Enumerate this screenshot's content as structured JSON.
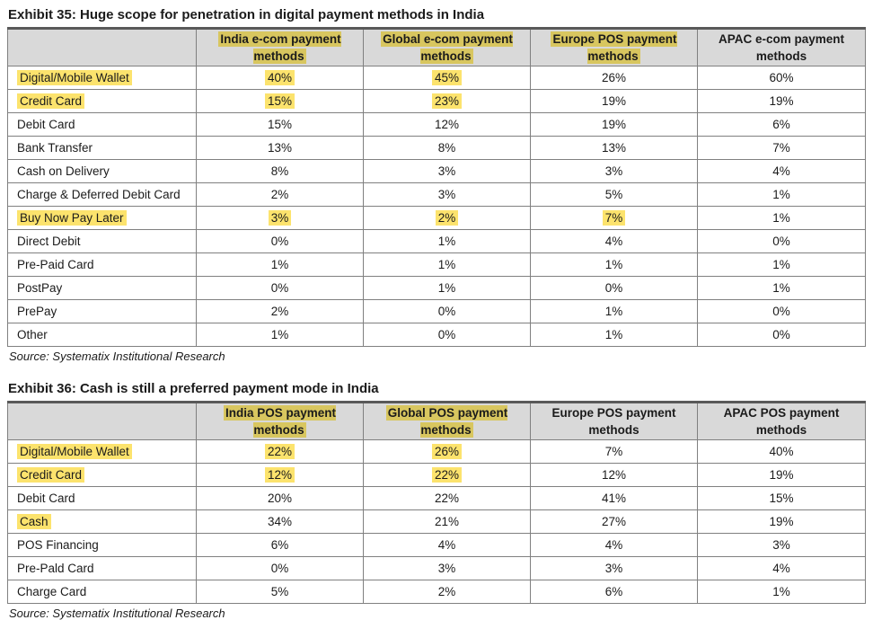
{
  "colors": {
    "header_bg": "#d9d9d9",
    "highlight_body": "#fce36d",
    "highlight_header": "#d8c65f",
    "border": "#808080",
    "border_top": "#595959",
    "text": "#1b1b1b"
  },
  "exhibits": [
    {
      "title": "Exhibit 35: Huge scope for penetration in digital payment methods in India",
      "source": "Source: Systematix Institutional Research",
      "columns": [
        {
          "label": "",
          "hl": false
        },
        {
          "label": "India e-com payment methods",
          "hl": true
        },
        {
          "label": "Global e-com payment methods",
          "hl": true
        },
        {
          "label": "Europe POS payment methods",
          "hl": true
        },
        {
          "label": "APAC e-com payment methods",
          "hl": false
        }
      ],
      "rows": [
        {
          "label": "Digital/Mobile Wallet",
          "label_hl": true,
          "values": [
            "40%",
            "45%",
            "26%",
            "60%"
          ],
          "hl": [
            true,
            true,
            false,
            false
          ]
        },
        {
          "label": "Credit Card",
          "label_hl": true,
          "values": [
            "15%",
            "23%",
            "19%",
            "19%"
          ],
          "hl": [
            true,
            true,
            false,
            false
          ]
        },
        {
          "label": "Debit Card",
          "label_hl": false,
          "values": [
            "15%",
            "12%",
            "19%",
            "6%"
          ],
          "hl": [
            false,
            false,
            false,
            false
          ]
        },
        {
          "label": "Bank Transfer",
          "label_hl": false,
          "values": [
            "13%",
            "8%",
            "13%",
            "7%"
          ],
          "hl": [
            false,
            false,
            false,
            false
          ]
        },
        {
          "label": "Cash on Delivery",
          "label_hl": false,
          "values": [
            "8%",
            "3%",
            "3%",
            "4%"
          ],
          "hl": [
            false,
            false,
            false,
            false
          ]
        },
        {
          "label": "Charge & Deferred Debit Card",
          "label_hl": false,
          "values": [
            "2%",
            "3%",
            "5%",
            "1%"
          ],
          "hl": [
            false,
            false,
            false,
            false
          ]
        },
        {
          "label": "Buy Now Pay Later",
          "label_hl": true,
          "values": [
            "3%",
            "2%",
            "7%",
            "1%"
          ],
          "hl": [
            true,
            true,
            true,
            false
          ]
        },
        {
          "label": "Direct Debit",
          "label_hl": false,
          "values": [
            "0%",
            "1%",
            "4%",
            "0%"
          ],
          "hl": [
            false,
            false,
            false,
            false
          ]
        },
        {
          "label": "Pre-Paid Card",
          "label_hl": false,
          "values": [
            "1%",
            "1%",
            "1%",
            "1%"
          ],
          "hl": [
            false,
            false,
            false,
            false
          ]
        },
        {
          "label": "PostPay",
          "label_hl": false,
          "values": [
            "0%",
            "1%",
            "0%",
            "1%"
          ],
          "hl": [
            false,
            false,
            false,
            false
          ]
        },
        {
          "label": "PrePay",
          "label_hl": false,
          "values": [
            "2%",
            "0%",
            "1%",
            "0%"
          ],
          "hl": [
            false,
            false,
            false,
            false
          ]
        },
        {
          "label": "Other",
          "label_hl": false,
          "values": [
            "1%",
            "0%",
            "1%",
            "0%"
          ],
          "hl": [
            false,
            false,
            false,
            false
          ]
        }
      ]
    },
    {
      "title": "Exhibit 36: Cash is still a preferred payment mode in India",
      "source": "Source: Systematix Institutional Research",
      "columns": [
        {
          "label": "",
          "hl": false
        },
        {
          "label": "India POS payment methods",
          "hl": true
        },
        {
          "label": "Global POS payment methods",
          "hl": true
        },
        {
          "label": "Europe POS payment methods",
          "hl": false
        },
        {
          "label": "APAC POS payment methods",
          "hl": false
        }
      ],
      "rows": [
        {
          "label": "Digital/Mobile Wallet",
          "label_hl": true,
          "values": [
            "22%",
            "26%",
            "7%",
            "40%"
          ],
          "hl": [
            true,
            true,
            false,
            false
          ]
        },
        {
          "label": "Credit Card",
          "label_hl": true,
          "values": [
            "12%",
            "22%",
            "12%",
            "19%"
          ],
          "hl": [
            true,
            true,
            false,
            false
          ]
        },
        {
          "label": "Debit Card",
          "label_hl": false,
          "values": [
            "20%",
            "22%",
            "41%",
            "15%"
          ],
          "hl": [
            false,
            false,
            false,
            false
          ]
        },
        {
          "label": "Cash",
          "label_hl": true,
          "values": [
            "34%",
            "21%",
            "27%",
            "19%"
          ],
          "hl": [
            false,
            false,
            false,
            false
          ]
        },
        {
          "label": "POS Financing",
          "label_hl": false,
          "values": [
            "6%",
            "4%",
            "4%",
            "3%"
          ],
          "hl": [
            false,
            false,
            false,
            false
          ]
        },
        {
          "label": "Pre-Pald Card",
          "label_hl": false,
          "values": [
            "0%",
            "3%",
            "3%",
            "4%"
          ],
          "hl": [
            false,
            false,
            false,
            false
          ]
        },
        {
          "label": "Charge Card",
          "label_hl": false,
          "values": [
            "5%",
            "2%",
            "6%",
            "1%"
          ],
          "hl": [
            false,
            false,
            false,
            false
          ]
        }
      ]
    }
  ]
}
